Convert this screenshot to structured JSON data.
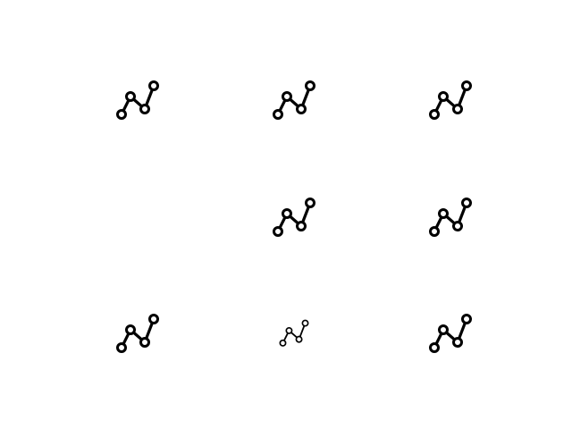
{
  "icon": {
    "name": "line-chart-icon",
    "color": "#000000",
    "background": "#ffffff"
  },
  "grid": {
    "rows": 3,
    "columns": 3,
    "cells": [
      {
        "row": 1,
        "col": 1,
        "visible": true,
        "style": "regular"
      },
      {
        "row": 1,
        "col": 2,
        "visible": true,
        "style": "regular"
      },
      {
        "row": 1,
        "col": 3,
        "visible": true,
        "style": "regular"
      },
      {
        "row": 2,
        "col": 1,
        "visible": false,
        "style": "empty"
      },
      {
        "row": 2,
        "col": 2,
        "visible": true,
        "style": "regular"
      },
      {
        "row": 2,
        "col": 3,
        "visible": true,
        "style": "regular"
      },
      {
        "row": 3,
        "col": 1,
        "visible": true,
        "style": "regular"
      },
      {
        "row": 3,
        "col": 2,
        "visible": true,
        "style": "small-light"
      },
      {
        "row": 3,
        "col": 3,
        "visible": true,
        "style": "regular"
      }
    ]
  }
}
